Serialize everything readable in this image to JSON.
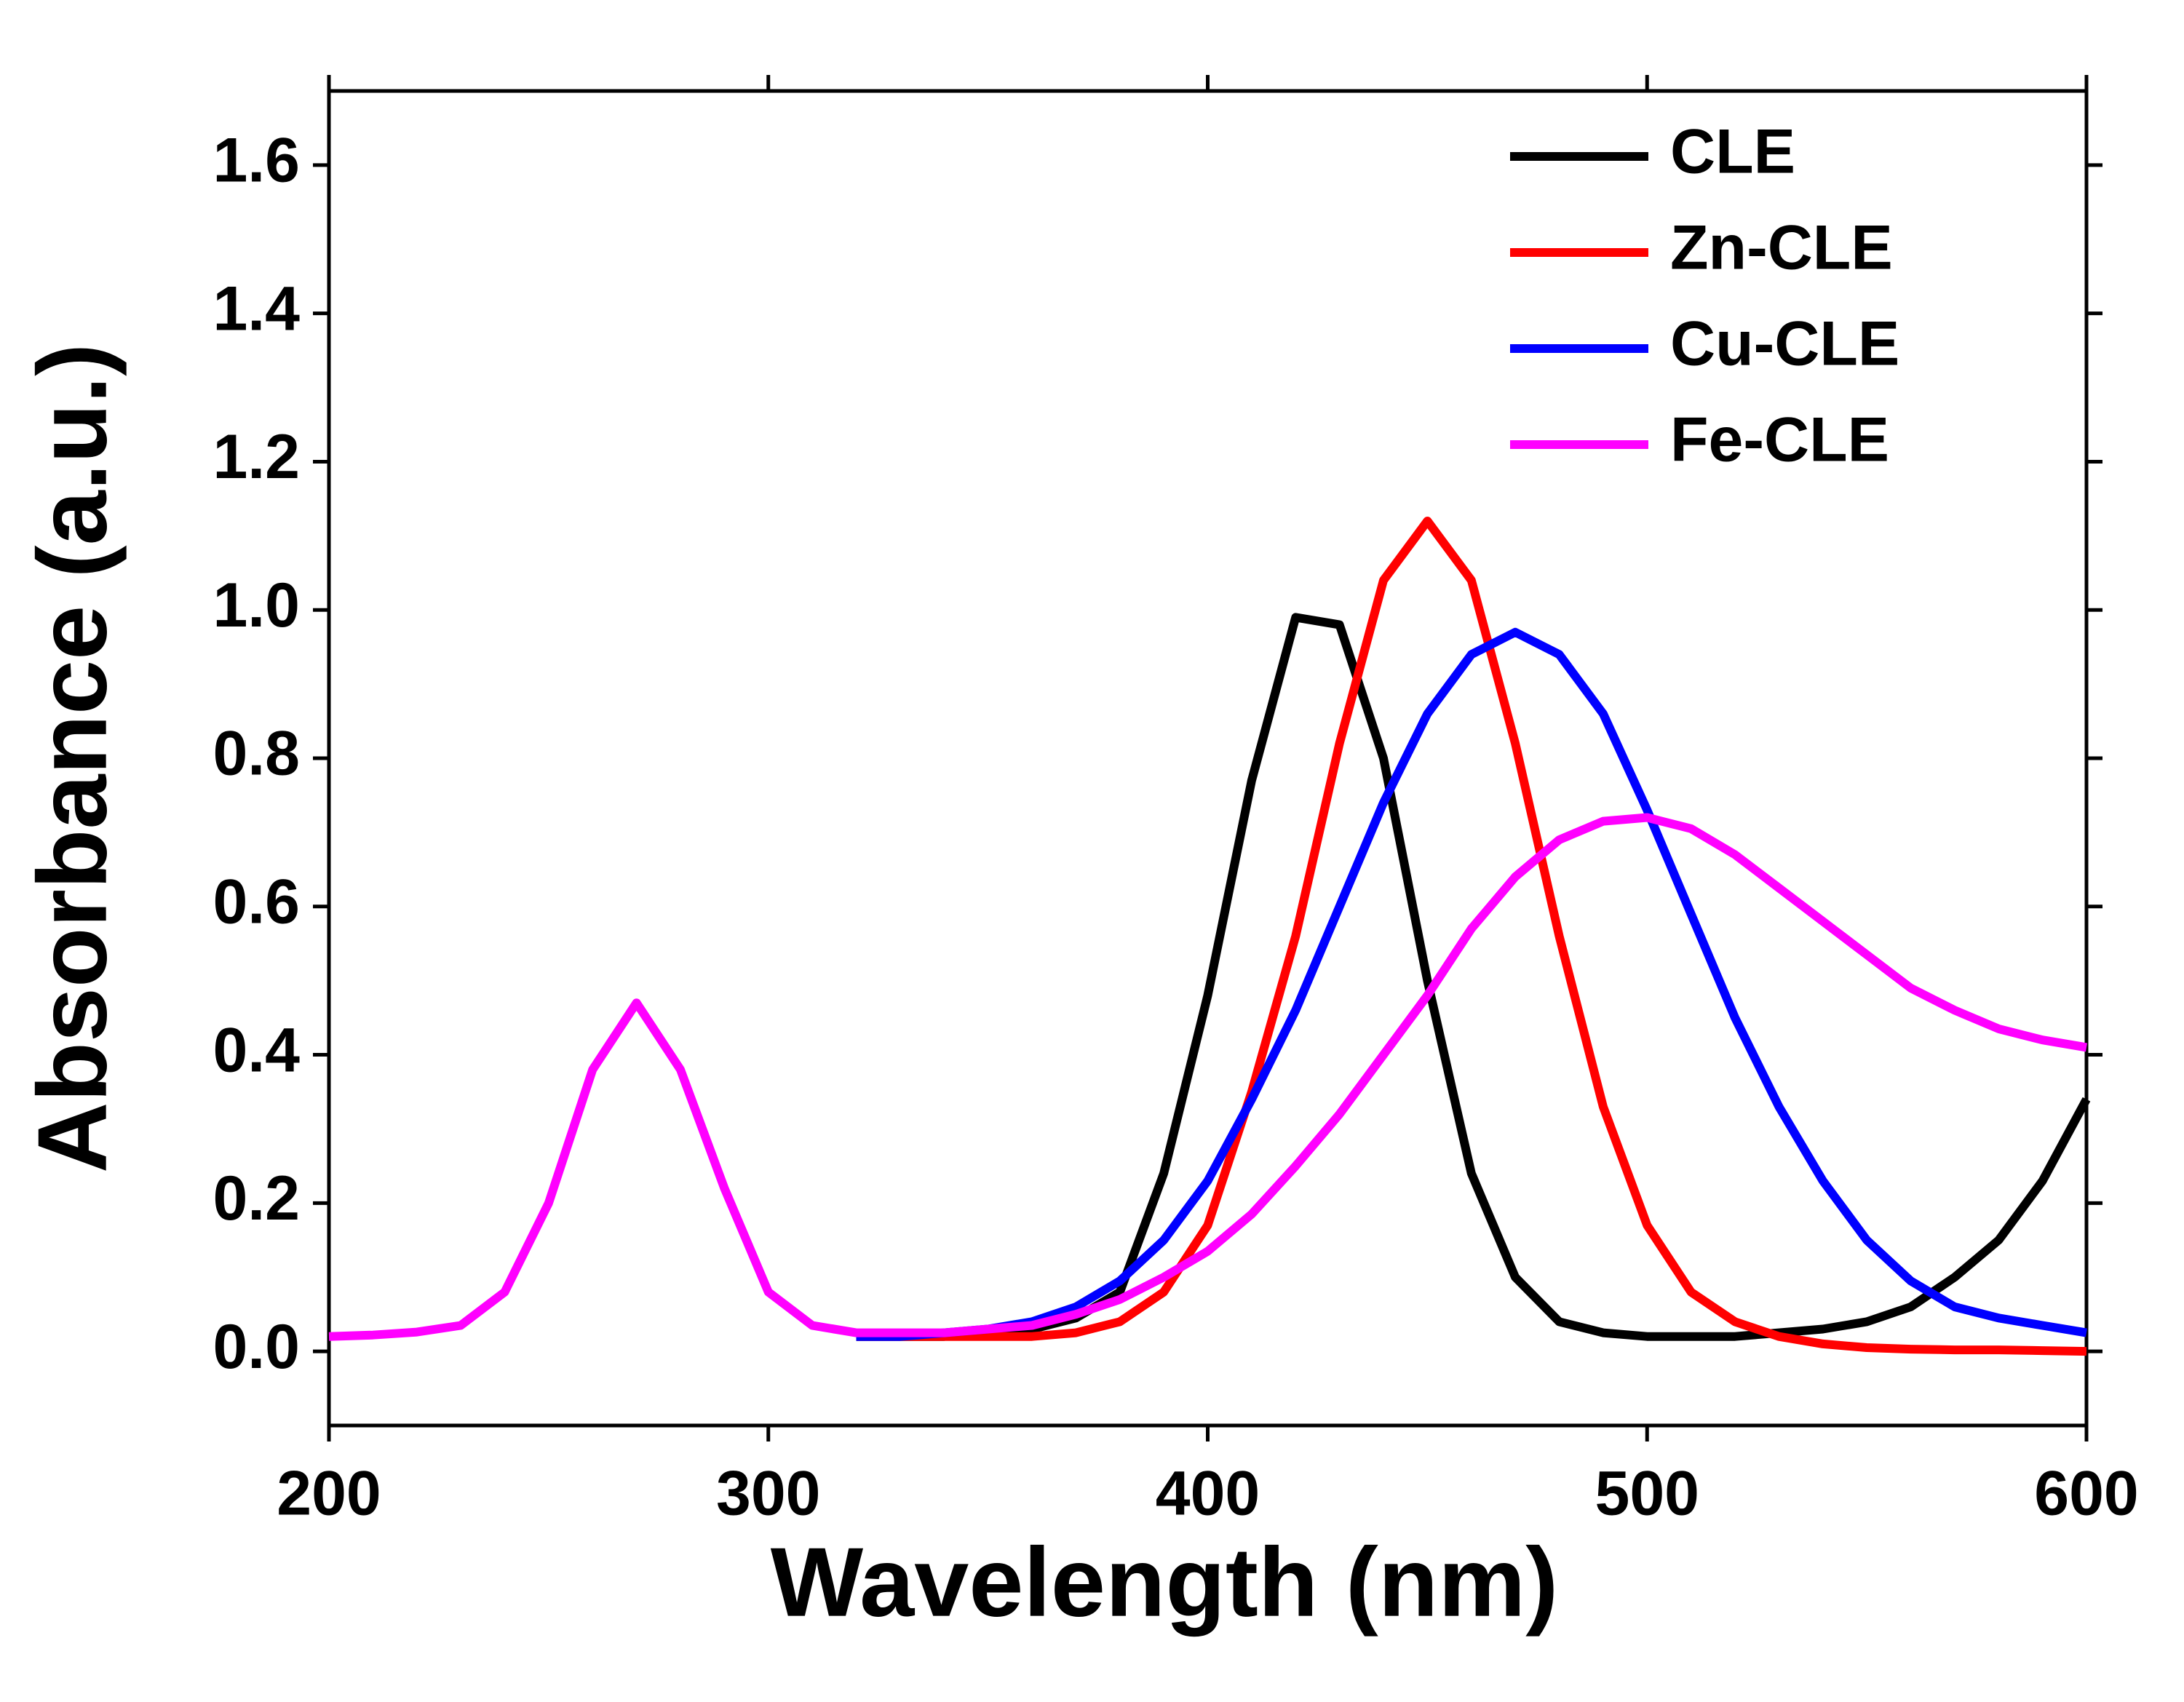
{
  "chart_data": {
    "type": "line",
    "xlabel": "Wavelength (nm)",
    "ylabel": "Absorbance (a.u.)",
    "x": [
      200,
      210,
      220,
      230,
      240,
      250,
      260,
      270,
      280,
      290,
      300,
      310,
      320,
      330,
      340,
      350,
      360,
      370,
      380,
      390,
      400,
      410,
      420,
      430,
      440,
      450,
      460,
      470,
      480,
      490,
      500,
      510,
      520,
      530,
      540,
      550,
      560,
      570,
      580,
      590,
      600
    ],
    "series": [
      {
        "name": "CLE",
        "color": "#000000",
        "values": [
          null,
          null,
          null,
          null,
          null,
          null,
          null,
          null,
          null,
          null,
          null,
          null,
          0.02,
          0.02,
          0.02,
          0.025,
          0.03,
          0.045,
          0.08,
          0.24,
          0.48,
          0.77,
          0.99,
          0.98,
          0.8,
          0.5,
          0.24,
          0.1,
          0.04,
          0.025,
          0.02,
          0.02,
          0.02,
          0.025,
          0.03,
          0.04,
          0.06,
          0.1,
          0.15,
          0.23,
          0.34
        ]
      },
      {
        "name": "Zn-CLE",
        "color": "#ff0000",
        "values": [
          null,
          null,
          null,
          null,
          null,
          null,
          null,
          null,
          null,
          null,
          null,
          null,
          0.02,
          0.02,
          0.02,
          0.02,
          0.02,
          0.025,
          0.04,
          0.08,
          0.17,
          0.35,
          0.56,
          0.82,
          1.04,
          1.12,
          1.04,
          0.82,
          0.56,
          0.33,
          0.17,
          0.08,
          0.04,
          0.02,
          0.01,
          0.005,
          0.003,
          0.002,
          0.002,
          0.001,
          0.0
        ]
      },
      {
        "name": "Cu-CLE",
        "color": "#0000ff",
        "values": [
          null,
          null,
          null,
          null,
          null,
          null,
          null,
          null,
          null,
          null,
          null,
          null,
          0.02,
          0.02,
          0.025,
          0.03,
          0.04,
          0.06,
          0.095,
          0.15,
          0.23,
          0.34,
          0.46,
          0.6,
          0.74,
          0.86,
          0.94,
          0.97,
          0.94,
          0.86,
          0.73,
          0.59,
          0.45,
          0.33,
          0.23,
          0.15,
          0.095,
          0.06,
          0.045,
          0.035,
          0.025
        ]
      },
      {
        "name": "Fe-CLE",
        "color": "#ff00ff",
        "values": [
          0.02,
          0.022,
          0.026,
          0.035,
          0.08,
          0.2,
          0.38,
          0.47,
          0.38,
          0.22,
          0.08,
          0.035,
          0.025,
          0.025,
          0.025,
          0.03,
          0.035,
          0.05,
          0.07,
          0.1,
          0.135,
          0.185,
          0.25,
          0.32,
          0.4,
          0.48,
          0.57,
          0.64,
          0.69,
          0.715,
          0.72,
          0.705,
          0.67,
          0.625,
          0.58,
          0.535,
          0.49,
          0.46,
          0.435,
          0.42,
          0.41
        ]
      }
    ],
    "xlim": [
      200,
      600
    ],
    "xticks": [
      200,
      300,
      400,
      500,
      600
    ],
    "ylim": [
      -0.1,
      1.7
    ],
    "yticks": [
      {
        "value": 0,
        "label": "0.0"
      },
      {
        "value": 0.2,
        "label": "0.2"
      },
      {
        "value": 0.4,
        "label": "0.4"
      },
      {
        "value": 0.6,
        "label": "0.6"
      },
      {
        "value": 0.8,
        "label": "0.8"
      },
      {
        "value": 1,
        "label": "1.0"
      },
      {
        "value": 1.2,
        "label": "1.2"
      },
      {
        "value": 1.4,
        "label": "1.4"
      },
      {
        "value": 1.6,
        "label": "1.6"
      }
    ],
    "legend": "upper right"
  }
}
